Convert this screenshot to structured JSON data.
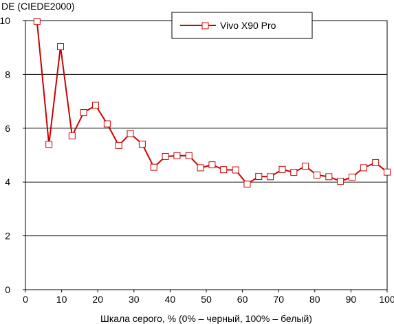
{
  "chart_data": {
    "type": "line",
    "title": "",
    "ylabel": "DE (CIEDE2000)",
    "xlabel": "Шкала серого, % (0% – черный, 100% – белый)",
    "xlim": [
      0,
      100
    ],
    "ylim": [
      0,
      10
    ],
    "xticks": [
      0,
      10,
      20,
      30,
      40,
      50,
      60,
      70,
      80,
      90,
      100
    ],
    "yticks": [
      0,
      2,
      4,
      6,
      8,
      10
    ],
    "grid": "horizontal",
    "legend_position": "top-center",
    "series": [
      {
        "name": "Vivo X90 Pro",
        "color": "#cc0000",
        "marker": "square",
        "x": [
          3.2,
          6.5,
          9.7,
          12.9,
          16.1,
          19.4,
          22.6,
          25.8,
          29.0,
          32.3,
          35.5,
          38.7,
          41.9,
          45.2,
          48.4,
          51.6,
          54.8,
          58.1,
          61.3,
          64.5,
          67.7,
          71.0,
          74.2,
          77.4,
          80.6,
          83.9,
          87.1,
          90.3,
          93.5,
          96.8,
          100.0
        ],
        "y": [
          9.97,
          5.4,
          9.03,
          5.72,
          6.58,
          6.85,
          6.16,
          5.36,
          5.8,
          5.41,
          4.55,
          4.95,
          4.98,
          4.98,
          4.53,
          4.64,
          4.46,
          4.45,
          3.92,
          4.21,
          4.2,
          4.47,
          4.36,
          4.59,
          4.26,
          4.2,
          4.03,
          4.18,
          4.53,
          4.72,
          4.37
        ]
      }
    ]
  }
}
